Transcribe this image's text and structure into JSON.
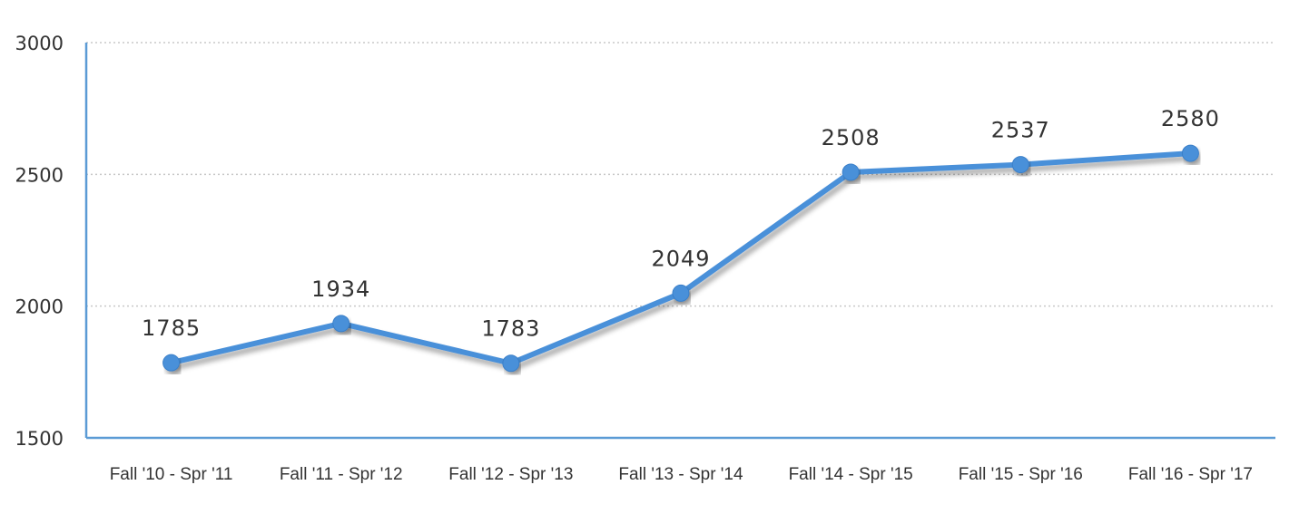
{
  "chart_data": {
    "type": "line",
    "categories": [
      "Fall '10 - Spr '11",
      "Fall '11 - Spr '12",
      "Fall '12 - Spr '13",
      "Fall '13 - Spr '14",
      "Fall '14 - Spr '15",
      "Fall '15 - Spr '16",
      "Fall '16 - Spr '17"
    ],
    "series": [
      {
        "values": [
          1785,
          1934,
          1783,
          2049,
          2508,
          2537,
          2580
        ],
        "color": "#4a90d9"
      }
    ],
    "yticks": [
      "1500",
      "2000",
      "2500",
      "3000"
    ],
    "data_labels": [
      "1785",
      "1934",
      "1783",
      "2049",
      "2508",
      "2537",
      "2580"
    ],
    "ylim": [
      1500,
      3000
    ],
    "grid": true,
    "legend": "none",
    "title": "",
    "xlabel": "",
    "ylabel": ""
  }
}
